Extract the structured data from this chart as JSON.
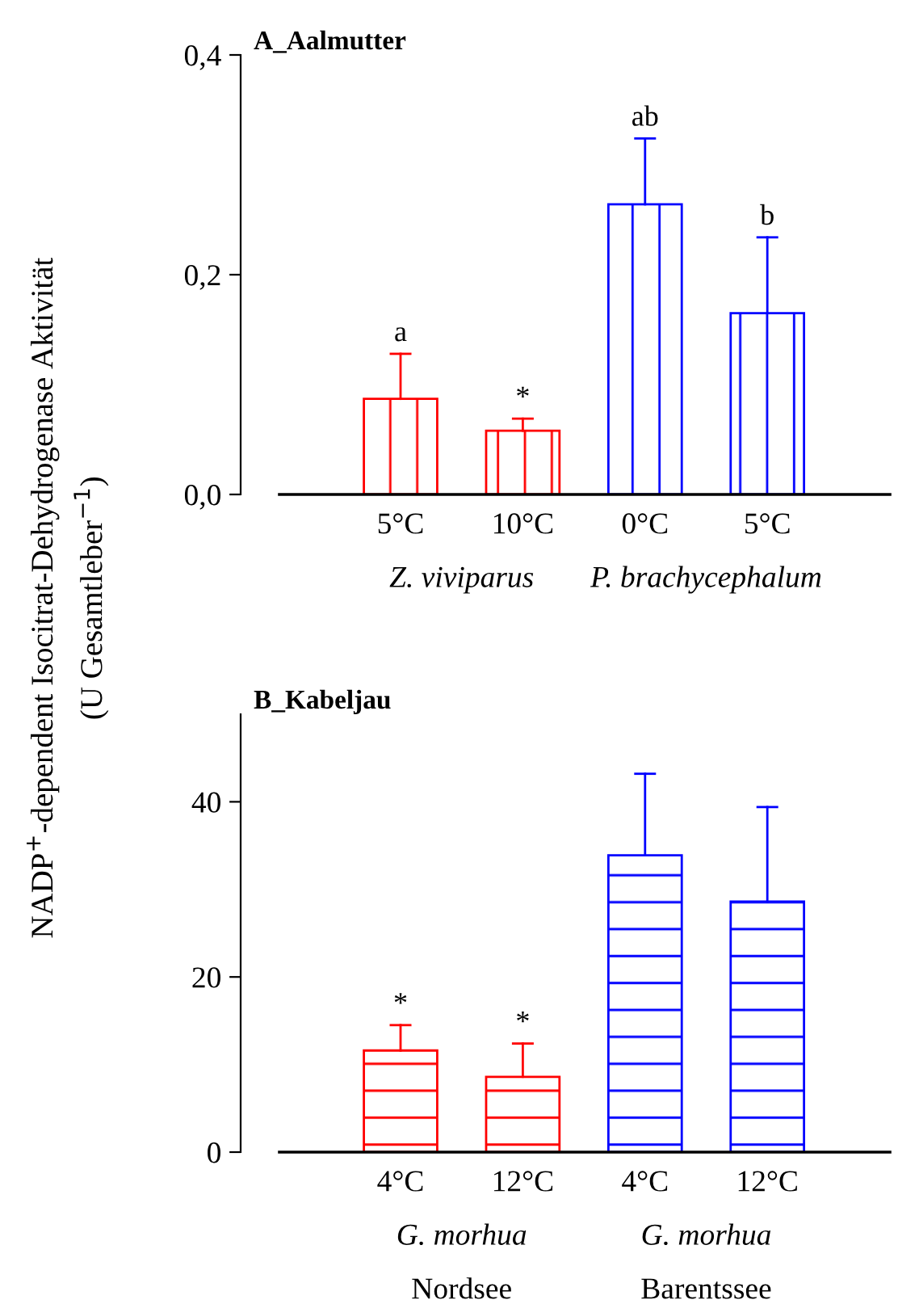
{
  "chart_data": [
    {
      "type": "bar",
      "title": "A_Aalmutter",
      "ylabel": "NADP$^{+}$-dependent Isocitrat-Dehydrogenase Aktivität\n(U Gesamtleber$^{−1}$)",
      "categories": [
        "5°C",
        "10°C",
        "0°C",
        "5°C"
      ],
      "values": [
        0.087,
        0.058,
        0.264,
        0.165
      ],
      "colors": [
        "#ff0000",
        "#ff0000",
        "#0000ff",
        "#0000ff"
      ],
      "errors": [
        [
          0.087,
          0.128
        ],
        [
          0.058,
          0.069
        ],
        [
          0.264,
          0.324
        ],
        [
          0.165,
          0.234
        ]
      ],
      "value_labels": [
        "a",
        "*",
        "ab",
        "b"
      ],
      "ylim": [
        0,
        0.4
      ],
      "yticks": [
        {
          "value": 0,
          "label": "0,0"
        },
        {
          "value": 0.2,
          "label": "0,2"
        },
        {
          "value": 0.4,
          "label": "0,4"
        }
      ],
      "annotations": [
        "Z. viviparus",
        "P. brachycephalum"
      ],
      "grid": false,
      "legend": false
    },
    {
      "type": "bar",
      "title": "B_Kabeljau",
      "categories": [
        "4°C",
        "12°C",
        "4°C",
        "12°C"
      ],
      "values": [
        11.6,
        8.6,
        33.9,
        28.6
      ],
      "colors": [
        "#ff0000",
        "#ff0000",
        "#0000ff",
        "#0000ff"
      ],
      "errors": [
        [
          11.6,
          14.5
        ],
        [
          8.6,
          12.4
        ],
        [
          33.9,
          43.2
        ],
        [
          28.6,
          39.4
        ]
      ],
      "value_labels": [
        "*",
        "*",
        null,
        null
      ],
      "ylim": [
        0,
        50
      ],
      "yticks": [
        0,
        20,
        40
      ],
      "annotations": [
        "G. morhua\nNordsee",
        "G. morhua\nBarentssee"
      ],
      "grid": false,
      "legend": false
    }
  ]
}
